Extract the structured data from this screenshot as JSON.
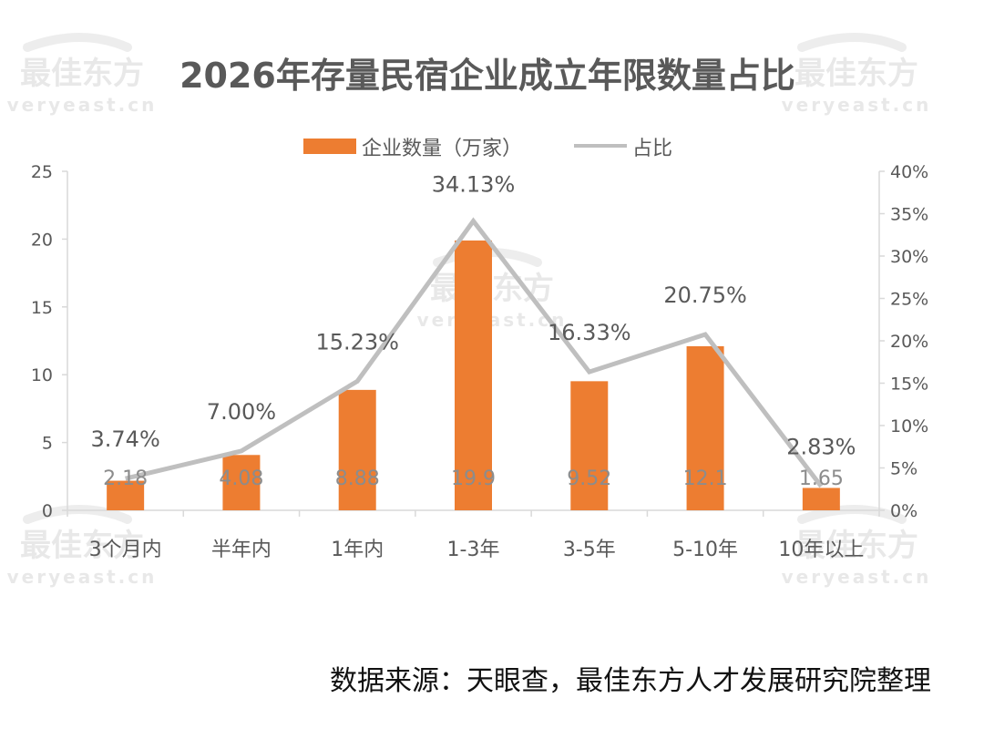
{
  "watermark": {
    "brand": "最佳东方",
    "url": "veryeast.cn"
  },
  "source_note": "数据来源：天眼查，最佳东方人才发展研究院整理",
  "colors": {
    "bar": "#ed7d31",
    "line": "#bfbfbf",
    "axis_text": "#595959",
    "title": "#595959",
    "grid_axis": "#d9d9d9"
  },
  "chart_data": {
    "type": "bar",
    "title": "2026年存量民宿企业成立年限数量占比",
    "categories": [
      "3个月内",
      "半年内",
      "1年内",
      "1-3年",
      "3-5年",
      "5-10年",
      "10年以上"
    ],
    "series": [
      {
        "name": "企业数量（万家）",
        "type": "bar",
        "axis": "left",
        "values": [
          2.18,
          4.08,
          8.88,
          19.9,
          9.52,
          12.1,
          1.65
        ],
        "labels": [
          "2.18",
          "4.08",
          "8.88",
          "19.9",
          "9.52",
          "12.1",
          "1.65"
        ]
      },
      {
        "name": "占比",
        "type": "line",
        "axis": "right",
        "values": [
          3.74,
          7.0,
          15.23,
          34.13,
          16.33,
          20.75,
          2.83
        ],
        "labels": [
          "3.74%",
          "7.00%",
          "15.23%",
          "34.13%",
          "16.33%",
          "20.75%",
          "2.83%"
        ]
      }
    ],
    "y_left": {
      "min": 0,
      "max": 25,
      "ticks": [
        "0",
        "5",
        "10",
        "15",
        "20",
        "25"
      ]
    },
    "y_right": {
      "min": 0,
      "max": 40,
      "ticks": [
        "0%",
        "5%",
        "10%",
        "15%",
        "20%",
        "25%",
        "30%",
        "35%",
        "40%"
      ]
    },
    "legend_position": "top",
    "grid": false
  }
}
